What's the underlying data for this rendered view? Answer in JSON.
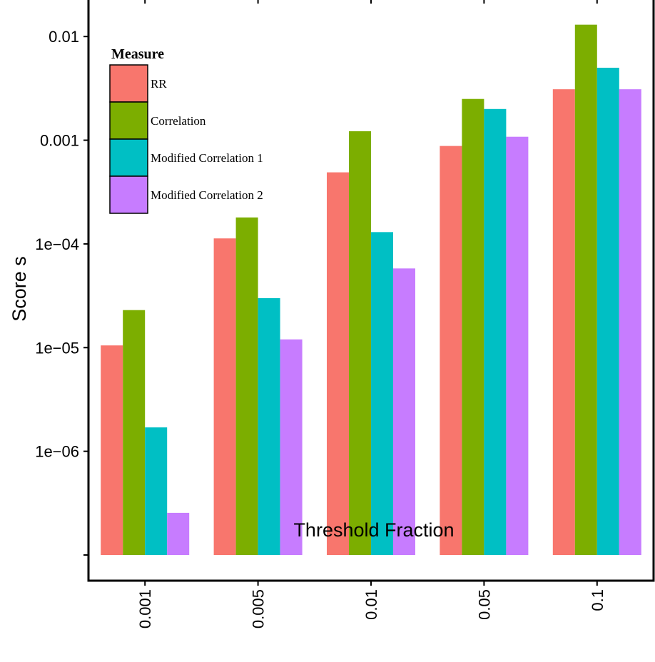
{
  "chart_data": {
    "type": "bar",
    "xlabel": "Threshold Fraction",
    "ylabel": "Score s",
    "y_scale": "log10",
    "ylim": [
      1e-07,
      0.0225
    ],
    "y_ticks": [
      {
        "value": 0.01,
        "label": "0.01"
      },
      {
        "value": 0.001,
        "label": "0.001"
      },
      {
        "value": 0.0001,
        "label": "1e−04"
      },
      {
        "value": 1e-05,
        "label": "1e−05"
      },
      {
        "value": 1e-06,
        "label": "1e−06"
      }
    ],
    "categories": [
      "0.001",
      "0.005",
      "0.01",
      "0.05",
      "0.1"
    ],
    "legend": {
      "title": "Measure",
      "position": "top-left (inside plot)"
    },
    "series": [
      {
        "name": "RR",
        "color": "#F8766D",
        "values": [
          1.05e-05,
          0.000113,
          0.00049,
          0.00088,
          0.0031
        ]
      },
      {
        "name": "Correlation",
        "color": "#7CAE00",
        "values": [
          2.3e-05,
          0.00018,
          0.00122,
          0.0025,
          0.013
        ]
      },
      {
        "name": "Modified Correlation 1",
        "color": "#00BFC4",
        "values": [
          1.7e-06,
          3e-05,
          0.00013,
          0.002,
          0.005
        ]
      },
      {
        "name": "Modified Correlation 2",
        "color": "#C77CFF",
        "values": [
          2.55e-07,
          1.2e-05,
          5.8e-05,
          0.00108,
          0.0031
        ]
      }
    ],
    "grid": false
  }
}
